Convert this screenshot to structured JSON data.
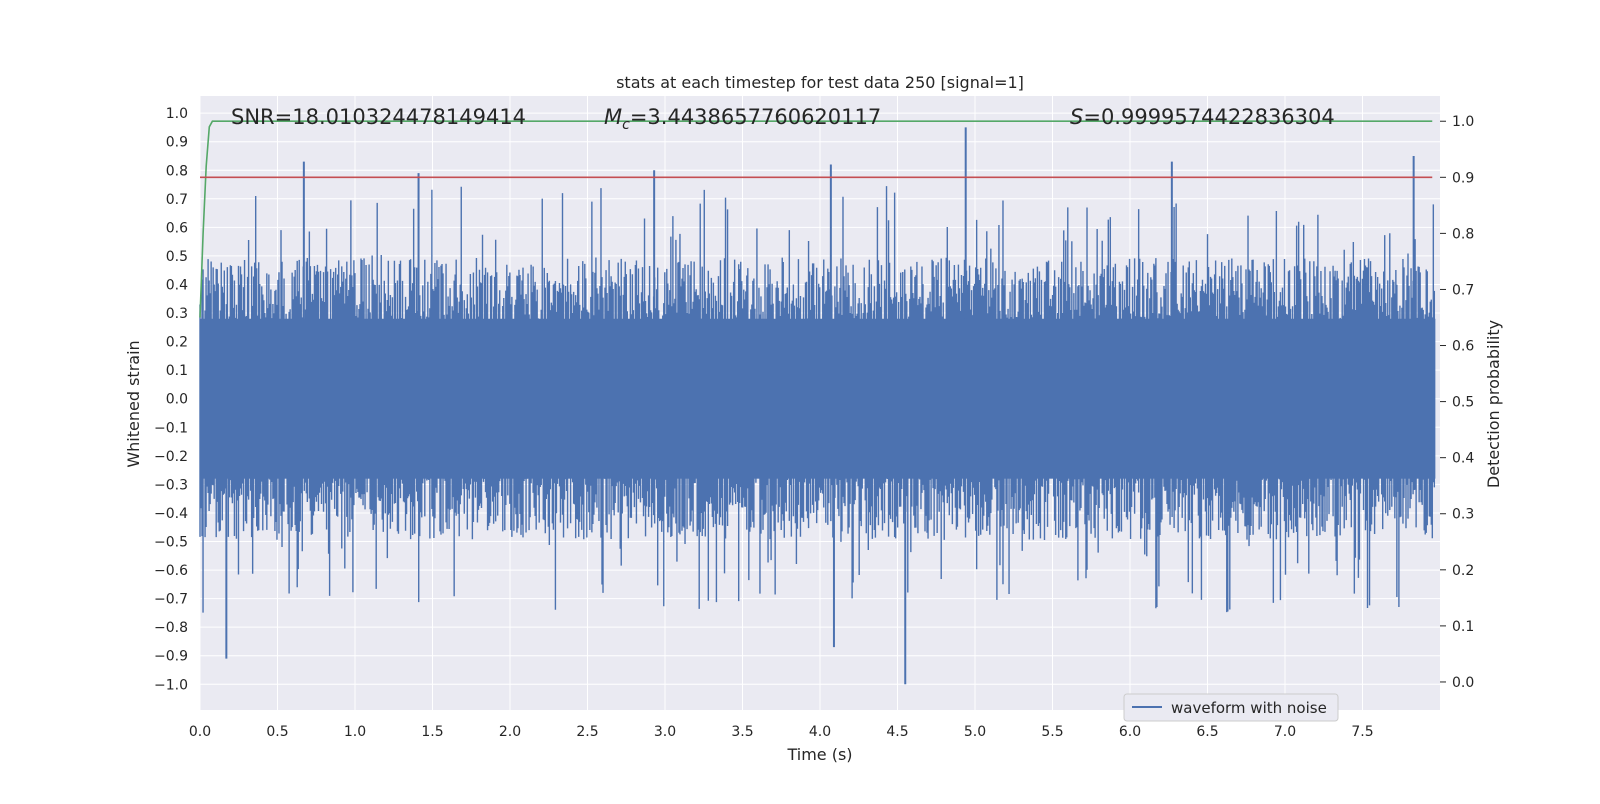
{
  "chart_data": {
    "type": "line",
    "title": "stats at each timestep for test data 250 [signal=1]",
    "xlabel": "Time (s)",
    "ylabel_left": "Whitened strain",
    "ylabel_right": "Detection probability",
    "xlim": [
      0.0,
      8.0
    ],
    "ylim_left": [
      -1.09,
      1.06
    ],
    "ylim_right": [
      -0.05,
      1.045
    ],
    "x_ticks": [
      "0.0",
      "0.5",
      "1.0",
      "1.5",
      "2.0",
      "2.5",
      "3.0",
      "3.5",
      "4.0",
      "4.5",
      "5.0",
      "5.5",
      "6.0",
      "6.5",
      "7.0",
      "7.5"
    ],
    "y_ticks_left": [
      "1.0",
      "0.9",
      "0.8",
      "0.7",
      "0.6",
      "0.5",
      "0.4",
      "0.3",
      "0.2",
      "0.1",
      "0.0",
      "−0.1",
      "−0.2",
      "−0.3",
      "−0.4",
      "−0.5",
      "−0.6",
      "−0.7",
      "−0.8",
      "−0.9",
      "−1.0"
    ],
    "y_ticks_right": [
      "1.0",
      "0.9",
      "0.8",
      "0.7",
      "0.6",
      "0.5",
      "0.4",
      "0.3",
      "0.2",
      "0.1",
      "0.0"
    ],
    "annotations": {
      "snr": "SNR=18.010324478149414",
      "mc_prefix": "M",
      "mc_sub": "c",
      "mc_value": "=3.4438657760620117",
      "s_prefix": "S",
      "s_value": "=0.9999574422836304"
    },
    "legend": {
      "label": "waveform with noise",
      "placement": "lower-right"
    },
    "grid": true,
    "series": [
      {
        "name": "waveform with noise",
        "axis": "left",
        "color": "#4c72b0",
        "samples_per_second": 2048,
        "envelope": {
          "typical_upper": 0.45,
          "typical_lower": -0.45
        },
        "notable_peaks": [
          {
            "x": 0.17,
            "y": -0.91
          },
          {
            "x": 0.67,
            "y": 0.83
          },
          {
            "x": 1.41,
            "y": 0.79
          },
          {
            "x": 2.93,
            "y": 0.8
          },
          {
            "x": 4.07,
            "y": 0.82
          },
          {
            "x": 4.09,
            "y": -0.87
          },
          {
            "x": 4.55,
            "y": -1.0
          },
          {
            "x": 4.94,
            "y": 0.95
          },
          {
            "x": 6.27,
            "y": 0.83
          },
          {
            "x": 7.83,
            "y": 0.85
          }
        ]
      },
      {
        "name": "",
        "axis": "right",
        "color": "#55a868",
        "x": [
          0.0,
          0.02,
          0.04,
          0.06,
          0.08,
          0.12,
          7.95
        ],
        "y": [
          0.65,
          0.8,
          0.92,
          0.99,
          1.0,
          1.0,
          1.0
        ]
      },
      {
        "name": "",
        "axis": "right",
        "color": "#c44e52",
        "x": [
          0.0,
          7.95
        ],
        "y": [
          0.9,
          0.9
        ]
      }
    ]
  }
}
